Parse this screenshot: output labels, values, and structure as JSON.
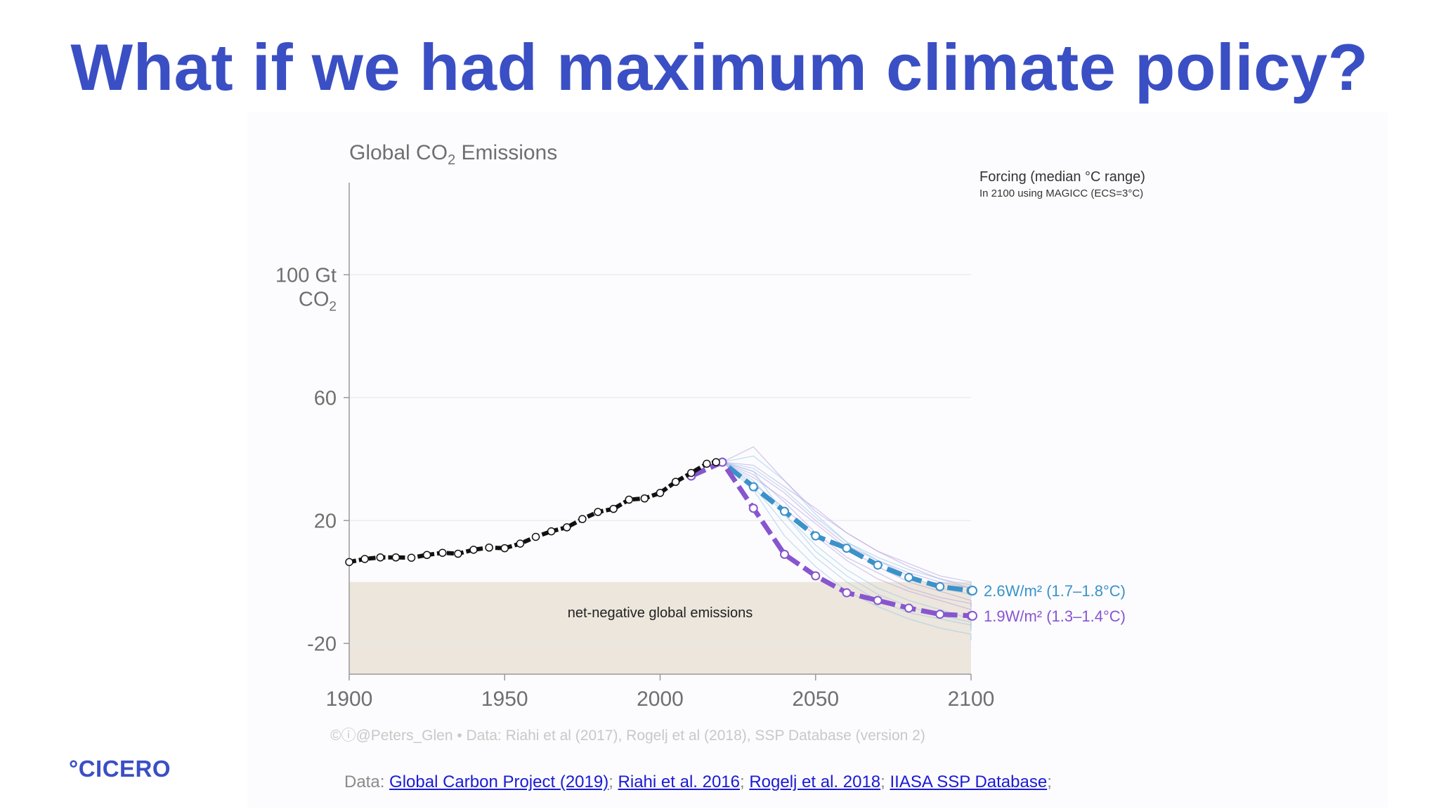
{
  "slide": {
    "title": "What if we had maximum climate policy?",
    "logo": "°CICERO"
  },
  "footer": {
    "prefix": "Data: ",
    "links": [
      "Global Carbon Project (2019)",
      "Riahi et al. 2016",
      "Rogelj et al. 2018",
      "IIASA SSP Database"
    ],
    "separator": "; ",
    "suffix": ";"
  },
  "chart_data": {
    "type": "line",
    "title_prefix": "Global CO",
    "title_sub": "2",
    "title_suffix": " Emissions",
    "ylabel_top_line1": "100 Gt",
    "ylabel_top_line2_main": "CO",
    "ylabel_top_line2_sub": "2",
    "y_ticks": [
      60,
      20,
      -20
    ],
    "y_tick_labels": [
      "60",
      "20",
      "-20"
    ],
    "ylim": [
      -30,
      130
    ],
    "x_ticks": [
      1900,
      1950,
      2000,
      2050,
      2100
    ],
    "x_tick_labels": [
      "1900",
      "1950",
      "2000",
      "2050",
      "2100"
    ],
    "xlim": [
      1900,
      2100
    ],
    "grid": true,
    "legend_title": "Forcing (median °C range)",
    "legend_subtitle": "In 2100 using MAGICC (ECS=3°C)",
    "net_negative_label": "net-negative global emissions",
    "credit": "©ⓘ@Peters_Glen  •  Data: Riahi et al (2017), Rogelj et al (2018), SSP Database (version 2)",
    "historical": {
      "name": "",
      "color": "#111111",
      "x": [
        1900,
        1905,
        1910,
        1915,
        1920,
        1925,
        1930,
        1935,
        1940,
        1945,
        1950,
        1955,
        1960,
        1965,
        1970,
        1975,
        1980,
        1985,
        1990,
        1995,
        2000,
        2005,
        2010,
        2015,
        2018
      ],
      "y": [
        6.5,
        7.5,
        8,
        8,
        7.9,
        8.8,
        9.5,
        9.2,
        10.5,
        11.2,
        11,
        12.5,
        14.7,
        16.5,
        17.8,
        20.5,
        22.8,
        23.8,
        26.8,
        27.2,
        29,
        32.6,
        35.5,
        38.5,
        39
      ]
    },
    "series": [
      {
        "name": "2.6W/m² (1.7–1.8°C)",
        "color": "#3a92c9",
        "x": [
          2010,
          2020,
          2030,
          2040,
          2050,
          2060,
          2070,
          2080,
          2090,
          2100
        ],
        "y": [
          34.5,
          39,
          31,
          23,
          15,
          11,
          5.5,
          1.5,
          -1.5,
          -2.8
        ]
      },
      {
        "name": "1.9W/m² (1.3–1.4°C)",
        "color": "#8855cf",
        "x": [
          2010,
          2020,
          2030,
          2040,
          2050,
          2060,
          2070,
          2080,
          2090,
          2100
        ],
        "y": [
          34.5,
          39,
          24,
          9,
          2,
          -3.5,
          -6,
          -8.5,
          -10.5,
          -11
        ]
      }
    ],
    "scenario_traces": [
      [
        39,
        33,
        22,
        12,
        4,
        -2,
        -6,
        -9,
        -12,
        -14
      ],
      [
        39,
        36,
        29,
        20,
        12,
        7,
        3,
        0,
        -2,
        -4
      ],
      [
        39,
        31,
        19,
        8,
        0,
        -6,
        -10,
        -12,
        -14,
        -16
      ],
      [
        39,
        35,
        26,
        16,
        8,
        3,
        -2,
        -5,
        -7,
        -9
      ],
      [
        39,
        41,
        33,
        22,
        13,
        7,
        2,
        -2,
        -4,
        -5
      ],
      [
        39,
        32,
        24,
        15,
        7,
        1,
        -3,
        -6,
        -9,
        -11
      ],
      [
        39,
        37,
        30,
        21,
        13,
        8,
        4,
        1,
        -1,
        -3
      ],
      [
        39,
        44,
        33,
        23,
        16,
        10,
        6,
        2,
        0,
        -2
      ],
      [
        39,
        30,
        15,
        5,
        -3,
        -8,
        -12,
        -15,
        -17,
        -19
      ],
      [
        39,
        34,
        27,
        19,
        11,
        5,
        0,
        -3,
        -6,
        -8
      ],
      [
        39,
        36,
        22,
        10,
        2,
        -4,
        -8,
        -11,
        -13,
        -15
      ],
      [
        39,
        38,
        31,
        24,
        16,
        10,
        5,
        1,
        -2,
        -3
      ]
    ]
  }
}
